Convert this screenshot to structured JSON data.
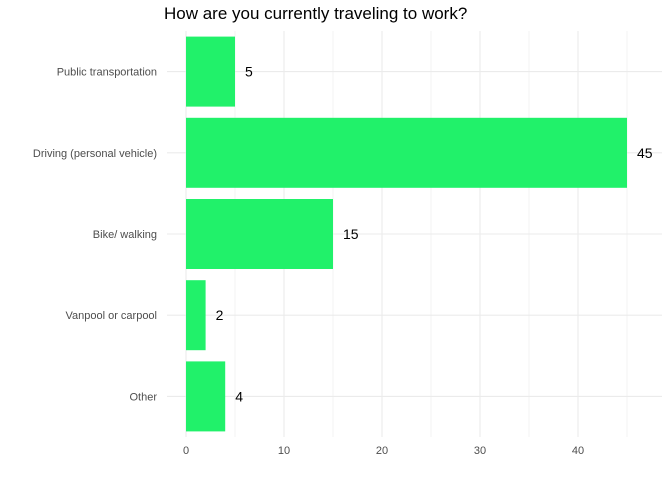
{
  "chart_data": {
    "type": "bar",
    "orientation": "horizontal",
    "title": "How are you currently traveling to work?",
    "xlabel": "",
    "ylabel": "",
    "categories": [
      "Public transportation",
      "Driving (personal vehicle)",
      "Bike/ walking",
      "Vanpool or carpool",
      "Other"
    ],
    "values": [
      5,
      45,
      15,
      2,
      4
    ],
    "xlim": [
      0,
      47
    ],
    "xticks": [
      0,
      10,
      20,
      30,
      40
    ],
    "xtick_labels": [
      "0",
      "10",
      "20",
      "30",
      "40"
    ],
    "grid": true,
    "bar_color": "#21f16a",
    "grid_color": "#ebebeb",
    "show_data_labels": true
  }
}
